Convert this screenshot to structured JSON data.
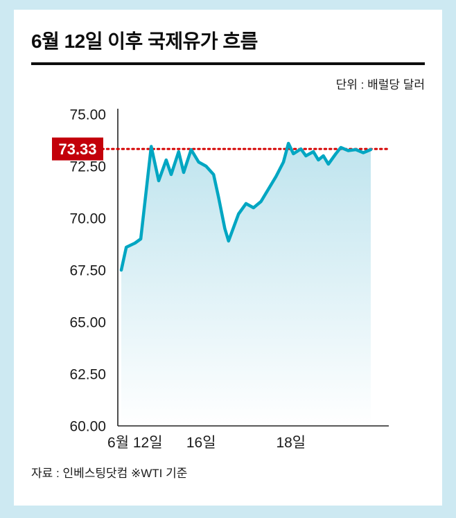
{
  "header": {
    "title": "6월 12일 이후 국제유가 흐름"
  },
  "footer": {
    "source": "자료 : 인베스팅닷컴 ※WTI 기준"
  },
  "chart_data": {
    "type": "area",
    "title": "6월 12일 이후 국제유가 흐름",
    "unit_label": "단위 : 배럴당 달러",
    "xlabel": "",
    "ylabel": "",
    "ylim": [
      60,
      75.5
    ],
    "grid": false,
    "legend": "none",
    "yticks": [
      "75.00",
      "72.50",
      "70.00",
      "67.50",
      "65.00",
      "62.50",
      "60.00"
    ],
    "ytick_values": [
      75.0,
      72.5,
      70.0,
      67.5,
      65.0,
      62.5,
      60.0
    ],
    "x_axis_ticks": [
      {
        "label": "6월 12일",
        "x": 0.055
      },
      {
        "label": "16일",
        "x": 0.32
      },
      {
        "label": "18일",
        "x": 0.68
      }
    ],
    "reference": {
      "value": 73.33,
      "label": "73.33"
    },
    "colors": {
      "line": "#00a6c2",
      "reference": "#d40000",
      "badge": "#c3000a",
      "area_top": "#bfe4ee",
      "area_bottom": "#ffffff",
      "background": "#ffffff",
      "page_background": "#cde9f2"
    },
    "values": [
      [
        0.0,
        67.5
      ],
      [
        0.02,
        68.6
      ],
      [
        0.055,
        68.8
      ],
      [
        0.078,
        69.0
      ],
      [
        0.12,
        73.45
      ],
      [
        0.15,
        71.8
      ],
      [
        0.18,
        72.8
      ],
      [
        0.2,
        72.1
      ],
      [
        0.23,
        73.2
      ],
      [
        0.25,
        72.2
      ],
      [
        0.28,
        73.3
      ],
      [
        0.31,
        72.7
      ],
      [
        0.34,
        72.5
      ],
      [
        0.37,
        72.1
      ],
      [
        0.39,
        71.0
      ],
      [
        0.415,
        69.5
      ],
      [
        0.43,
        68.9
      ],
      [
        0.47,
        70.2
      ],
      [
        0.5,
        70.7
      ],
      [
        0.53,
        70.5
      ],
      [
        0.56,
        70.8
      ],
      [
        0.59,
        71.4
      ],
      [
        0.62,
        72.0
      ],
      [
        0.65,
        72.7
      ],
      [
        0.67,
        73.6
      ],
      [
        0.69,
        73.1
      ],
      [
        0.72,
        73.33
      ],
      [
        0.74,
        73.0
      ],
      [
        0.77,
        73.2
      ],
      [
        0.79,
        72.8
      ],
      [
        0.81,
        73.0
      ],
      [
        0.83,
        72.6
      ],
      [
        0.86,
        73.1
      ],
      [
        0.88,
        73.4
      ],
      [
        0.91,
        73.25
      ],
      [
        0.94,
        73.3
      ],
      [
        0.97,
        73.15
      ],
      [
        1.0,
        73.3
      ]
    ]
  }
}
